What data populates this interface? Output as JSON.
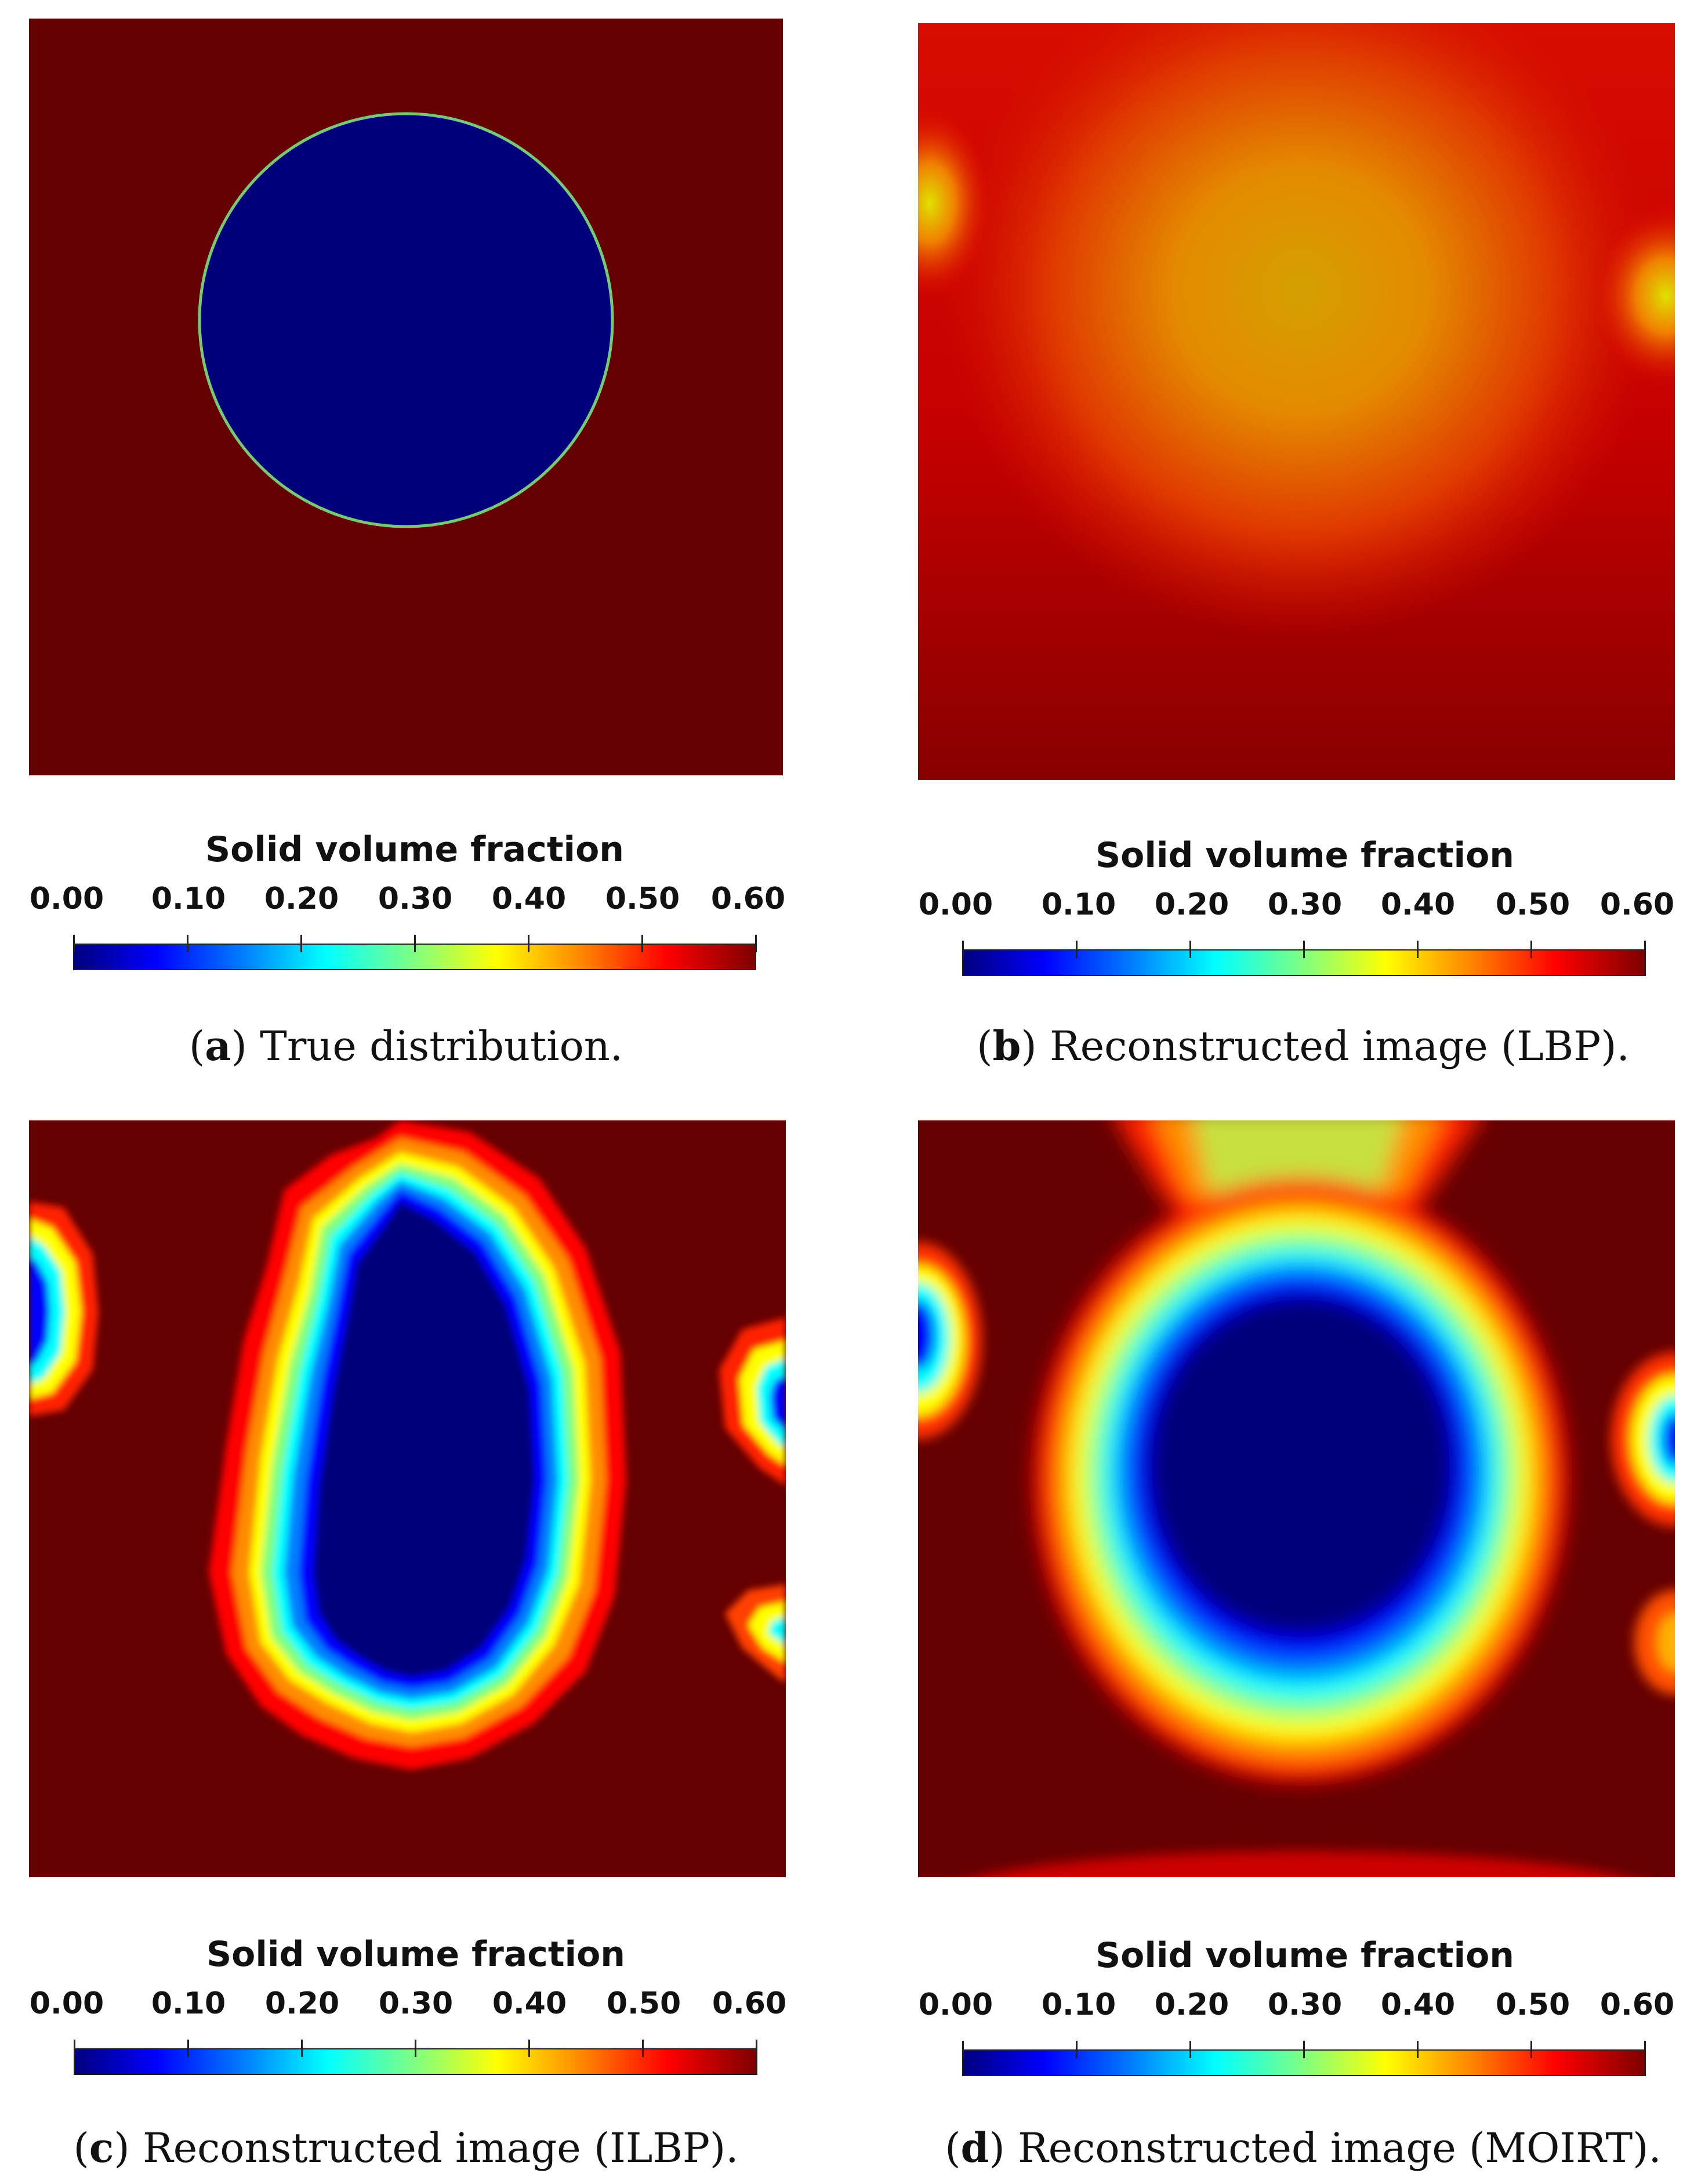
{
  "colorbar": {
    "title": "Solid volume fraction",
    "ticks": [
      "0.00",
      "0.10",
      "0.20",
      "0.30",
      "0.40",
      "0.50",
      "0.60"
    ],
    "range": [
      0.0,
      0.6
    ],
    "colormap": "jet"
  },
  "panels": [
    {
      "letter": "a",
      "caption": "True distribution."
    },
    {
      "letter": "b",
      "caption": "Reconstructed image (LBP)."
    },
    {
      "letter": "c",
      "caption": "Reconstructed image (ILBP)."
    },
    {
      "letter": "d",
      "caption": "Reconstructed image (MOIRT)."
    }
  ],
  "colors": {
    "background_solid": "#650000",
    "bubble": "#00007a"
  }
}
